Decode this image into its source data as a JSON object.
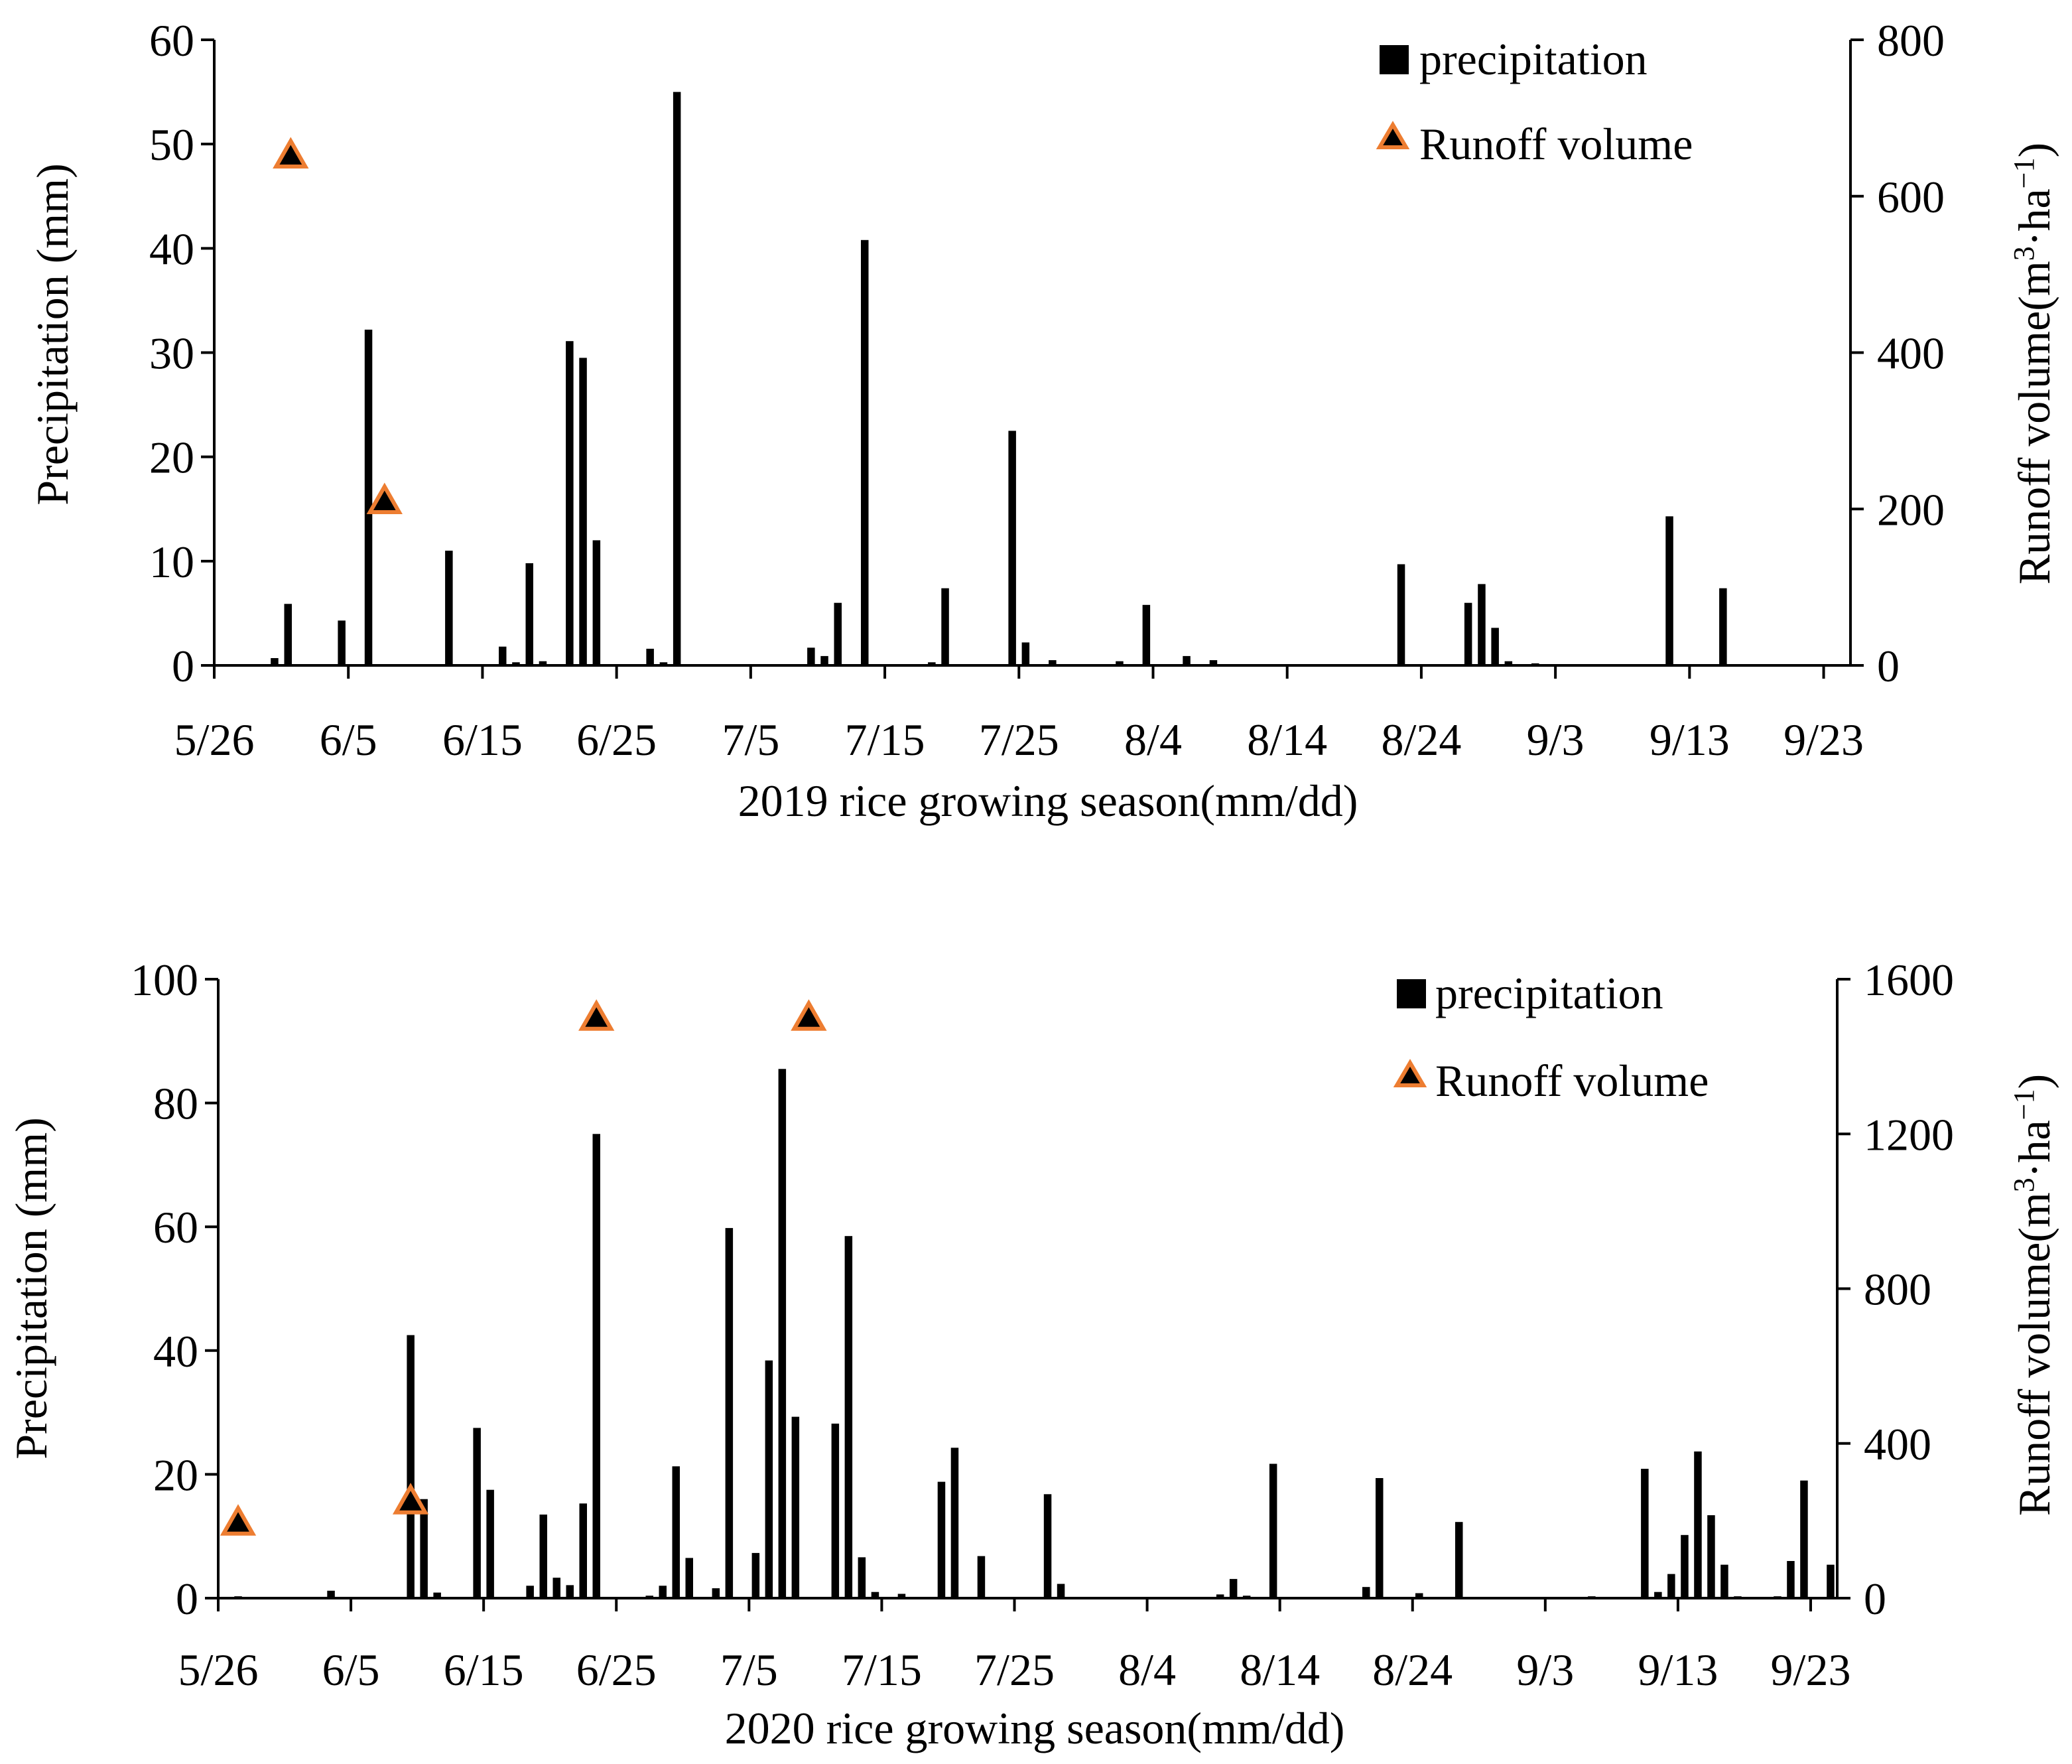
{
  "chart_data": [
    {
      "type": "bar",
      "id": "chart-2019",
      "xlabel": "2019 rice growing season(mm/dd)",
      "ylabel": "Precipitation (mm)",
      "y2label": "Runoff volume(m³·ha⁻¹)",
      "y2label_main": "Runoff volume(m",
      "y2label_sup1": "3",
      "y2label_mid": "·ha",
      "y2label_sup2": "−1",
      "y2label_end": ")",
      "x_range": [
        0,
        122
      ],
      "ylim": [
        0,
        60
      ],
      "y2lim": [
        0,
        800
      ],
      "x_ticks": [
        0,
        10,
        20,
        30,
        40,
        50,
        60,
        70,
        80,
        90,
        100,
        110,
        120
      ],
      "x_tick_labels": [
        "5/26",
        "6/5",
        "6/15",
        "6/25",
        "7/5",
        "7/15",
        "7/25",
        "8/4",
        "8/14",
        "8/24",
        "9/3",
        "9/13",
        "9/23"
      ],
      "y_ticks": [
        0,
        10,
        20,
        30,
        40,
        50,
        60
      ],
      "y_tick_labels": [
        "0",
        "10",
        "20",
        "30",
        "40",
        "50",
        "60"
      ],
      "y2_ticks": [
        0,
        200,
        400,
        600,
        800
      ],
      "y2_tick_labels": [
        "0",
        "200",
        "400",
        "600",
        "800"
      ],
      "legend_position": "top-right",
      "series": [
        {
          "name": "precipitation",
          "kind": "bar",
          "axis": "left",
          "color": "#000000",
          "x": [
            4.5,
            5.5,
            9.5,
            11.5,
            17.5,
            21.5,
            22.5,
            23.5,
            24.5,
            26.5,
            27.5,
            28.5,
            32.5,
            33.5,
            34.5,
            44.5,
            45.5,
            46.5,
            48.5,
            53.5,
            54.5,
            59.5,
            60.5,
            62.5,
            67.5,
            69.5,
            72.5,
            74.5,
            88.5,
            93.5,
            94.5,
            95.5,
            96.5,
            98.5,
            108.5,
            112.5
          ],
          "values": [
            0.7,
            5.9,
            4.3,
            32.2,
            11.0,
            1.8,
            0.3,
            9.8,
            0.4,
            31.1,
            29.5,
            12.0,
            1.6,
            0.3,
            55.0,
            1.7,
            0.9,
            6.0,
            40.8,
            0.3,
            7.4,
            22.5,
            2.2,
            0.5,
            0.4,
            5.8,
            0.9,
            0.5,
            9.7,
            6.0,
            7.8,
            3.6,
            0.4,
            0.2,
            14.3,
            7.4
          ]
        },
        {
          "name": "Runoff volume",
          "kind": "scatter",
          "axis": "right",
          "marker": "triangle",
          "fill": "#000000",
          "stroke": "#ED7D31",
          "x": [
            5.7,
            12.7
          ],
          "values": [
            652,
            210
          ]
        }
      ]
    },
    {
      "type": "bar",
      "id": "chart-2020",
      "xlabel": "2020 rice growing season(mm/dd)",
      "ylabel": "Precipitation (mm)",
      "y2label": "Runoff volume(m³·ha⁻¹)",
      "y2label_main": "Runoff volume(m",
      "y2label_sup1": "3",
      "y2label_mid": "·ha",
      "y2label_sup2": "−1",
      "y2label_end": ")",
      "x_range": [
        0,
        122
      ],
      "ylim": [
        0,
        100
      ],
      "y2lim": [
        0,
        1600
      ],
      "x_ticks": [
        0,
        10,
        20,
        30,
        40,
        50,
        60,
        70,
        80,
        90,
        100,
        110,
        120
      ],
      "x_tick_labels": [
        "5/26",
        "6/5",
        "6/15",
        "6/25",
        "7/5",
        "7/15",
        "7/25",
        "8/4",
        "8/14",
        "8/24",
        "9/3",
        "9/13",
        "9/23"
      ],
      "y_ticks": [
        0,
        20,
        40,
        60,
        80,
        100
      ],
      "y_tick_labels": [
        "0",
        "20",
        "40",
        "60",
        "80",
        "100"
      ],
      "y2_ticks": [
        0,
        400,
        800,
        1200,
        1600
      ],
      "y2_tick_labels": [
        "0",
        "400",
        "800",
        "1200",
        "1600"
      ],
      "legend_position": "top-right",
      "series": [
        {
          "name": "precipitation",
          "kind": "bar",
          "axis": "left",
          "color": "#000000",
          "x": [
            1.5,
            8.5,
            14.5,
            15.5,
            16.5,
            19.5,
            20.5,
            23.5,
            24.5,
            25.5,
            26.5,
            27.5,
            28.5,
            32.5,
            33.5,
            34.5,
            35.5,
            37.5,
            38.5,
            40.5,
            41.5,
            42.5,
            43.5,
            46.5,
            47.5,
            48.5,
            49.5,
            51.5,
            53.5,
            54.5,
            55.5,
            57.5,
            62.5,
            63.5,
            75.5,
            76.5,
            77.5,
            79.5,
            86.5,
            87.5,
            90.5,
            93.5,
            103.5,
            107.5,
            108.5,
            109.5,
            110.5,
            111.5,
            112.5,
            113.5,
            114.5,
            117.5,
            118.5,
            119.5,
            121.5
          ],
          "values": [
            0.3,
            1.2,
            42.5,
            16.0,
            0.9,
            27.5,
            17.5,
            2.0,
            13.5,
            3.3,
            2.1,
            15.3,
            75.0,
            0.4,
            2.0,
            21.3,
            6.5,
            1.6,
            59.8,
            7.3,
            38.4,
            85.5,
            29.3,
            28.2,
            58.5,
            6.6,
            1.0,
            0.7,
            0.2,
            18.8,
            24.3,
            6.8,
            16.8,
            2.3,
            0.6,
            3.1,
            0.4,
            21.7,
            1.8,
            19.4,
            0.8,
            12.3,
            0.3,
            20.9,
            1.0,
            3.9,
            10.2,
            23.7,
            13.4,
            5.4,
            0.3,
            0.3,
            6.0,
            19.0,
            5.4
          ]
        },
        {
          "name": "Runoff volume",
          "kind": "scatter",
          "axis": "right",
          "marker": "triangle",
          "fill": "#000000",
          "stroke": "#ED7D31",
          "x": [
            1.5,
            14.5,
            28.5,
            44.5
          ],
          "values": [
            195,
            250,
            1500,
            1500
          ]
        }
      ]
    }
  ]
}
